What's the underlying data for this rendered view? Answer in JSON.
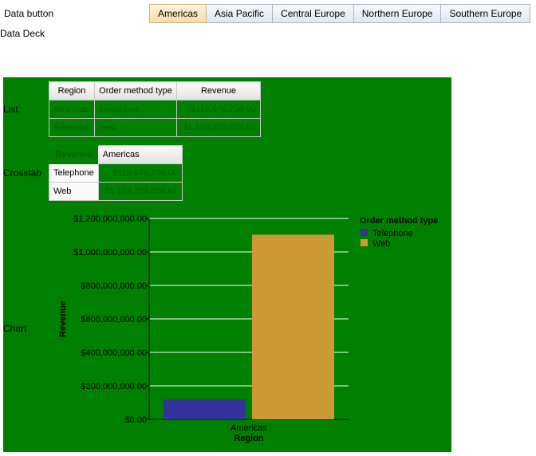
{
  "header": {
    "data_button_label": "Data button",
    "data_deck_label": "Data Deck"
  },
  "tabs": [
    {
      "label": "Americas",
      "active": true
    },
    {
      "label": "Asia Pacific",
      "active": false
    },
    {
      "label": "Central Europe",
      "active": false
    },
    {
      "label": "Northern Europe",
      "active": false
    },
    {
      "label": "Southern Europe",
      "active": false
    }
  ],
  "deck": {
    "background": "#008000",
    "list_label": "List",
    "crosstab_label": "Crosstab",
    "chart_label": "Chart"
  },
  "list_table": {
    "headers": [
      "Region",
      "Order method type",
      "Revenue"
    ],
    "rows": [
      [
        "Americas",
        "Telephone",
        "$119,676,736.00"
      ],
      [
        "Americas",
        "Web",
        "$1,103,259,036.67"
      ]
    ]
  },
  "crosstab": {
    "corner": "Revenue",
    "column_header": "Americas",
    "rows": [
      {
        "label": "Telephone",
        "value": "$119,676,736.00"
      },
      {
        "label": "Web",
        "value": "$1,103,259,036.67"
      }
    ]
  },
  "chart_data": {
    "type": "bar",
    "categories": [
      "Americas"
    ],
    "series": [
      {
        "name": "Telephone",
        "values": [
          119676736.0
        ],
        "color": "#333399"
      },
      {
        "name": "Web",
        "values": [
          1103259036.67
        ],
        "color": "#cc9933"
      }
    ],
    "ylim": [
      0,
      1200000000
    ],
    "yticks": [
      "$0.00",
      "$200,000,000.00",
      "$400,000,000.00",
      "$600,000,000.00",
      "$800,000,000.00",
      "$1,000,000,000.00",
      "$1,200,000,000.00"
    ],
    "ytick_values": [
      0,
      200000000,
      400000000,
      600000000,
      800000000,
      1000000000,
      1200000000
    ],
    "xlabel": "Region",
    "ylabel": "Revenue",
    "legend_title": "Order method type",
    "legend_position": "right",
    "grid": true
  }
}
